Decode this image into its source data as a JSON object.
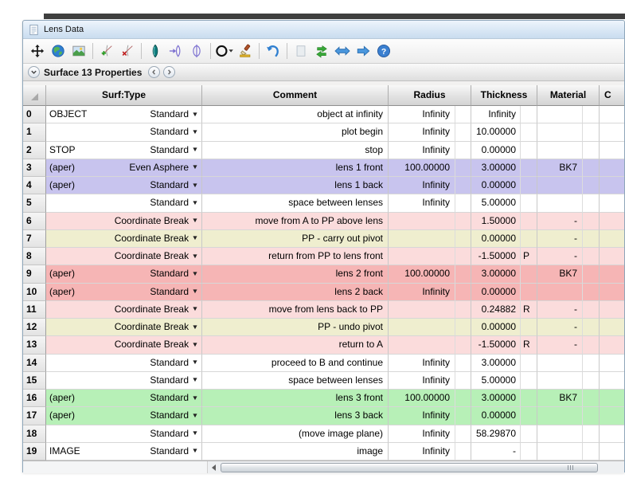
{
  "window": {
    "title": "Lens Data"
  },
  "toolbar": {
    "icons": [
      "move-icon",
      "globe-icon",
      "image-icon",
      "sep",
      "insert-surface-icon",
      "delete-surface-icon",
      "sep",
      "lens-solid-icon",
      "lens-arrow-icon",
      "lens-ring-icon",
      "sep",
      "aperture-icon",
      "paintbrush-icon",
      "sep",
      "undo-arrow-icon",
      "sep",
      "blank-square-icon",
      "swap-arrows-icon",
      "double-arrow-icon",
      "right-arrow-icon",
      "help-icon"
    ]
  },
  "properties_bar": {
    "label": "Surface 13 Properties"
  },
  "table": {
    "headers": {
      "surf_type": "Surf:Type",
      "comment": "Comment",
      "radius": "Radius",
      "thickness": "Thickness",
      "material": "Material",
      "coating": "C"
    },
    "type_caret": "▼",
    "rows": [
      {
        "num": "0",
        "label": "OBJECT",
        "type": "Standard",
        "comment": "object at infinity",
        "radius": "Infinity",
        "radius_flag": "",
        "thickness": "Infinity",
        "thickness_flag": "",
        "material": "",
        "material_flag": "",
        "highlight": ""
      },
      {
        "num": "1",
        "label": "",
        "type": "Standard",
        "comment": "plot begin",
        "radius": "Infinity",
        "radius_flag": "",
        "thickness": "10.00000",
        "thickness_flag": "",
        "material": "",
        "material_flag": "",
        "highlight": ""
      },
      {
        "num": "2",
        "label": "STOP",
        "type": "Standard",
        "comment": "stop",
        "radius": "Infinity",
        "radius_flag": "",
        "thickness": "0.00000",
        "thickness_flag": "",
        "material": "",
        "material_flag": "",
        "highlight": ""
      },
      {
        "num": "3",
        "label": "(aper)",
        "type": "Even Asphere",
        "comment": "lens 1 front",
        "radius": "100.00000",
        "radius_flag": "",
        "thickness": "3.00000",
        "thickness_flag": "",
        "material": "BK7",
        "material_flag": "",
        "highlight": "lavender"
      },
      {
        "num": "4",
        "label": "(aper)",
        "type": "Standard",
        "comment": "lens 1 back",
        "radius": "Infinity",
        "radius_flag": "",
        "thickness": "0.00000",
        "thickness_flag": "",
        "material": "",
        "material_flag": "",
        "highlight": "lavender"
      },
      {
        "num": "5",
        "label": "",
        "type": "Standard",
        "comment": "space between lenses",
        "radius": "Infinity",
        "radius_flag": "",
        "thickness": "5.00000",
        "thickness_flag": "",
        "material": "",
        "material_flag": "",
        "highlight": ""
      },
      {
        "num": "6",
        "label": "",
        "type": "Coordinate Break",
        "comment": "move from A to PP above lens",
        "radius": "",
        "radius_flag": "",
        "thickness": "1.50000",
        "thickness_flag": "",
        "material": "-",
        "material_flag": "",
        "highlight": "pink"
      },
      {
        "num": "7",
        "label": "",
        "type": "Coordinate Break",
        "comment": "PP - carry out pivot",
        "radius": "",
        "radius_flag": "",
        "thickness": "0.00000",
        "thickness_flag": "",
        "material": "-",
        "material_flag": "",
        "highlight": "khaki"
      },
      {
        "num": "8",
        "label": "",
        "type": "Coordinate Break",
        "comment": "return from PP to lens front",
        "radius": "",
        "radius_flag": "",
        "thickness": "-1.50000",
        "thickness_flag": "P",
        "material": "-",
        "material_flag": "",
        "highlight": "pink"
      },
      {
        "num": "9",
        "label": "(aper)",
        "type": "Standard",
        "comment": "lens 2 front",
        "radius": "100.00000",
        "radius_flag": "",
        "thickness": "3.00000",
        "thickness_flag": "",
        "material": "BK7",
        "material_flag": "",
        "highlight": "red"
      },
      {
        "num": "10",
        "label": "(aper)",
        "type": "Standard",
        "comment": "lens 2 back",
        "radius": "Infinity",
        "radius_flag": "",
        "thickness": "0.00000",
        "thickness_flag": "",
        "material": "",
        "material_flag": "",
        "highlight": "red"
      },
      {
        "num": "11",
        "label": "",
        "type": "Coordinate Break",
        "comment": "move from lens back to PP",
        "radius": "",
        "radius_flag": "",
        "thickness": "0.24882",
        "thickness_flag": "R",
        "material": "-",
        "material_flag": "",
        "highlight": "pink"
      },
      {
        "num": "12",
        "label": "",
        "type": "Coordinate Break",
        "comment": "PP - undo pivot",
        "radius": "",
        "radius_flag": "",
        "thickness": "0.00000",
        "thickness_flag": "",
        "material": "-",
        "material_flag": "",
        "highlight": "khaki"
      },
      {
        "num": "13",
        "label": "",
        "type": "Coordinate Break",
        "comment": "return to A",
        "radius": "",
        "radius_flag": "",
        "thickness": "-1.50000",
        "thickness_flag": "R",
        "material": "-",
        "material_flag": "",
        "highlight": "pink"
      },
      {
        "num": "14",
        "label": "",
        "type": "Standard",
        "comment": "proceed to B and continue",
        "radius": "Infinity",
        "radius_flag": "",
        "thickness": "3.00000",
        "thickness_flag": "",
        "material": "",
        "material_flag": "",
        "highlight": ""
      },
      {
        "num": "15",
        "label": "",
        "type": "Standard",
        "comment": "space between lenses",
        "radius": "Infinity",
        "radius_flag": "",
        "thickness": "5.00000",
        "thickness_flag": "",
        "material": "",
        "material_flag": "",
        "highlight": ""
      },
      {
        "num": "16",
        "label": "(aper)",
        "type": "Standard",
        "comment": "lens 3 front",
        "radius": "100.00000",
        "radius_flag": "",
        "thickness": "3.00000",
        "thickness_flag": "",
        "material": "BK7",
        "material_flag": "",
        "highlight": "green"
      },
      {
        "num": "17",
        "label": "(aper)",
        "type": "Standard",
        "comment": "lens 3 back",
        "radius": "Infinity",
        "radius_flag": "",
        "thickness": "0.00000",
        "thickness_flag": "",
        "material": "",
        "material_flag": "",
        "highlight": "green"
      },
      {
        "num": "18",
        "label": "",
        "type": "Standard",
        "comment": "(move image plane)",
        "radius": "Infinity",
        "radius_flag": "",
        "thickness": "58.29870",
        "thickness_flag": "",
        "material": "",
        "material_flag": "",
        "highlight": ""
      },
      {
        "num": "19",
        "label": "IMAGE",
        "type": "Standard",
        "comment": "image",
        "radius": "Infinity",
        "radius_flag": "",
        "thickness": "-",
        "thickness_flag": "",
        "material": "",
        "material_flag": "",
        "highlight": ""
      }
    ]
  },
  "colors": {
    "lavender": "#c8c4ee",
    "pink": "#fbdcdc",
    "khaki": "#efeecf",
    "red": "#f6b5b5",
    "green": "#b7f0b7",
    "titlebar_accent": "#c9dcef"
  }
}
